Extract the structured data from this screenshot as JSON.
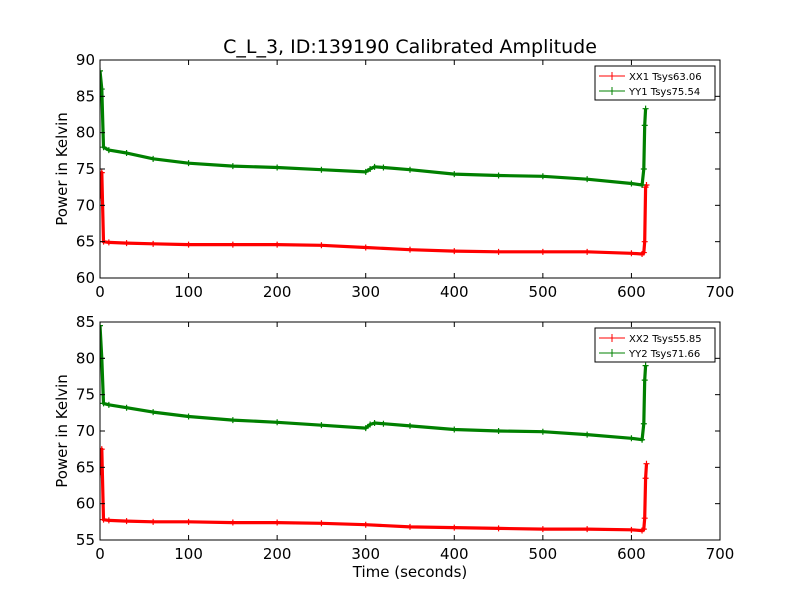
{
  "figure": {
    "title": "C_L_3, ID:139190 Calibrated Amplitude"
  },
  "chart_data": [
    {
      "type": "line",
      "title": "C_L_3, ID:139190 Calibrated Amplitude",
      "xlabel": "",
      "ylabel": "Power in Kelvin",
      "xlim": [
        0,
        700
      ],
      "ylim": [
        60,
        90
      ],
      "xticks": [
        0,
        100,
        200,
        300,
        400,
        500,
        600,
        700
      ],
      "yticks": [
        60,
        65,
        70,
        75,
        80,
        85,
        90
      ],
      "grid": false,
      "legend_position": "top-right",
      "series": [
        {
          "name": "XX1 Tsys63.06",
          "color": "#ff0000",
          "x": [
            0,
            2,
            4,
            10,
            30,
            60,
            100,
            150,
            200,
            250,
            300,
            350,
            400,
            450,
            500,
            550,
            600,
            612,
            614,
            615,
            616,
            617
          ],
          "y": [
            71.0,
            74.5,
            65.0,
            64.9,
            64.8,
            64.7,
            64.6,
            64.6,
            64.6,
            64.5,
            64.2,
            63.9,
            63.7,
            63.6,
            63.6,
            63.6,
            63.4,
            63.3,
            63.5,
            65.0,
            72.5,
            72.8
          ]
        },
        {
          "name": "YY1 Tsys75.54",
          "color": "#008000",
          "x": [
            0,
            2,
            4,
            10,
            30,
            60,
            100,
            150,
            200,
            250,
            300,
            305,
            310,
            320,
            350,
            400,
            450,
            500,
            550,
            600,
            612,
            614,
            615,
            616
          ],
          "y": [
            88.5,
            86.0,
            78.0,
            77.6,
            77.2,
            76.4,
            75.8,
            75.4,
            75.2,
            74.9,
            74.6,
            75.0,
            75.3,
            75.2,
            74.9,
            74.3,
            74.1,
            74.0,
            73.6,
            73.0,
            72.8,
            75.0,
            81.0,
            83.3
          ]
        }
      ]
    },
    {
      "type": "line",
      "title": "",
      "xlabel": "Time (seconds)",
      "ylabel": "Power in Kelvin",
      "xlim": [
        0,
        700
      ],
      "ylim": [
        55,
        85
      ],
      "xticks": [
        0,
        100,
        200,
        300,
        400,
        500,
        600,
        700
      ],
      "yticks": [
        55,
        60,
        65,
        70,
        75,
        80,
        85
      ],
      "grid": false,
      "legend_position": "top-right",
      "series": [
        {
          "name": "XX2 Tsys55.85",
          "color": "#ff0000",
          "x": [
            0,
            2,
            4,
            10,
            30,
            60,
            100,
            150,
            200,
            250,
            300,
            350,
            400,
            450,
            500,
            550,
            600,
            612,
            614,
            615,
            616,
            617
          ],
          "y": [
            64.0,
            67.5,
            57.8,
            57.7,
            57.6,
            57.5,
            57.5,
            57.4,
            57.4,
            57.3,
            57.1,
            56.8,
            56.7,
            56.6,
            56.5,
            56.5,
            56.4,
            56.3,
            56.5,
            58.0,
            63.5,
            65.5
          ]
        },
        {
          "name": "YY2 Tsys71.66",
          "color": "#008000",
          "x": [
            0,
            2,
            4,
            10,
            30,
            60,
            100,
            150,
            200,
            250,
            300,
            305,
            310,
            320,
            350,
            400,
            450,
            500,
            550,
            600,
            612,
            614,
            615,
            616
          ],
          "y": [
            84.5,
            80.0,
            73.8,
            73.6,
            73.2,
            72.6,
            72.0,
            71.5,
            71.2,
            70.8,
            70.4,
            70.9,
            71.1,
            71.0,
            70.7,
            70.2,
            70.0,
            69.9,
            69.5,
            69.0,
            68.8,
            71.0,
            77.0,
            79.0
          ]
        }
      ]
    }
  ]
}
